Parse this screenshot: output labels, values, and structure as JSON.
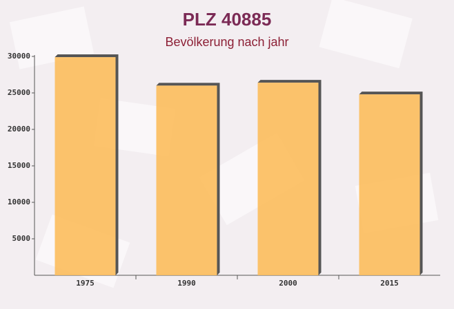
{
  "chart_data": {
    "type": "bar",
    "title": "PLZ 40885",
    "subtitle": "Bevölkerung nach jahr",
    "categories": [
      "1975",
      "1990",
      "2000",
      "2015"
    ],
    "values": [
      29900,
      26000,
      26400,
      24800
    ],
    "color": "#fcbd5c",
    "ylim": [
      0,
      30000
    ],
    "yticks": [
      5000,
      10000,
      15000,
      20000,
      25000,
      30000
    ]
  }
}
